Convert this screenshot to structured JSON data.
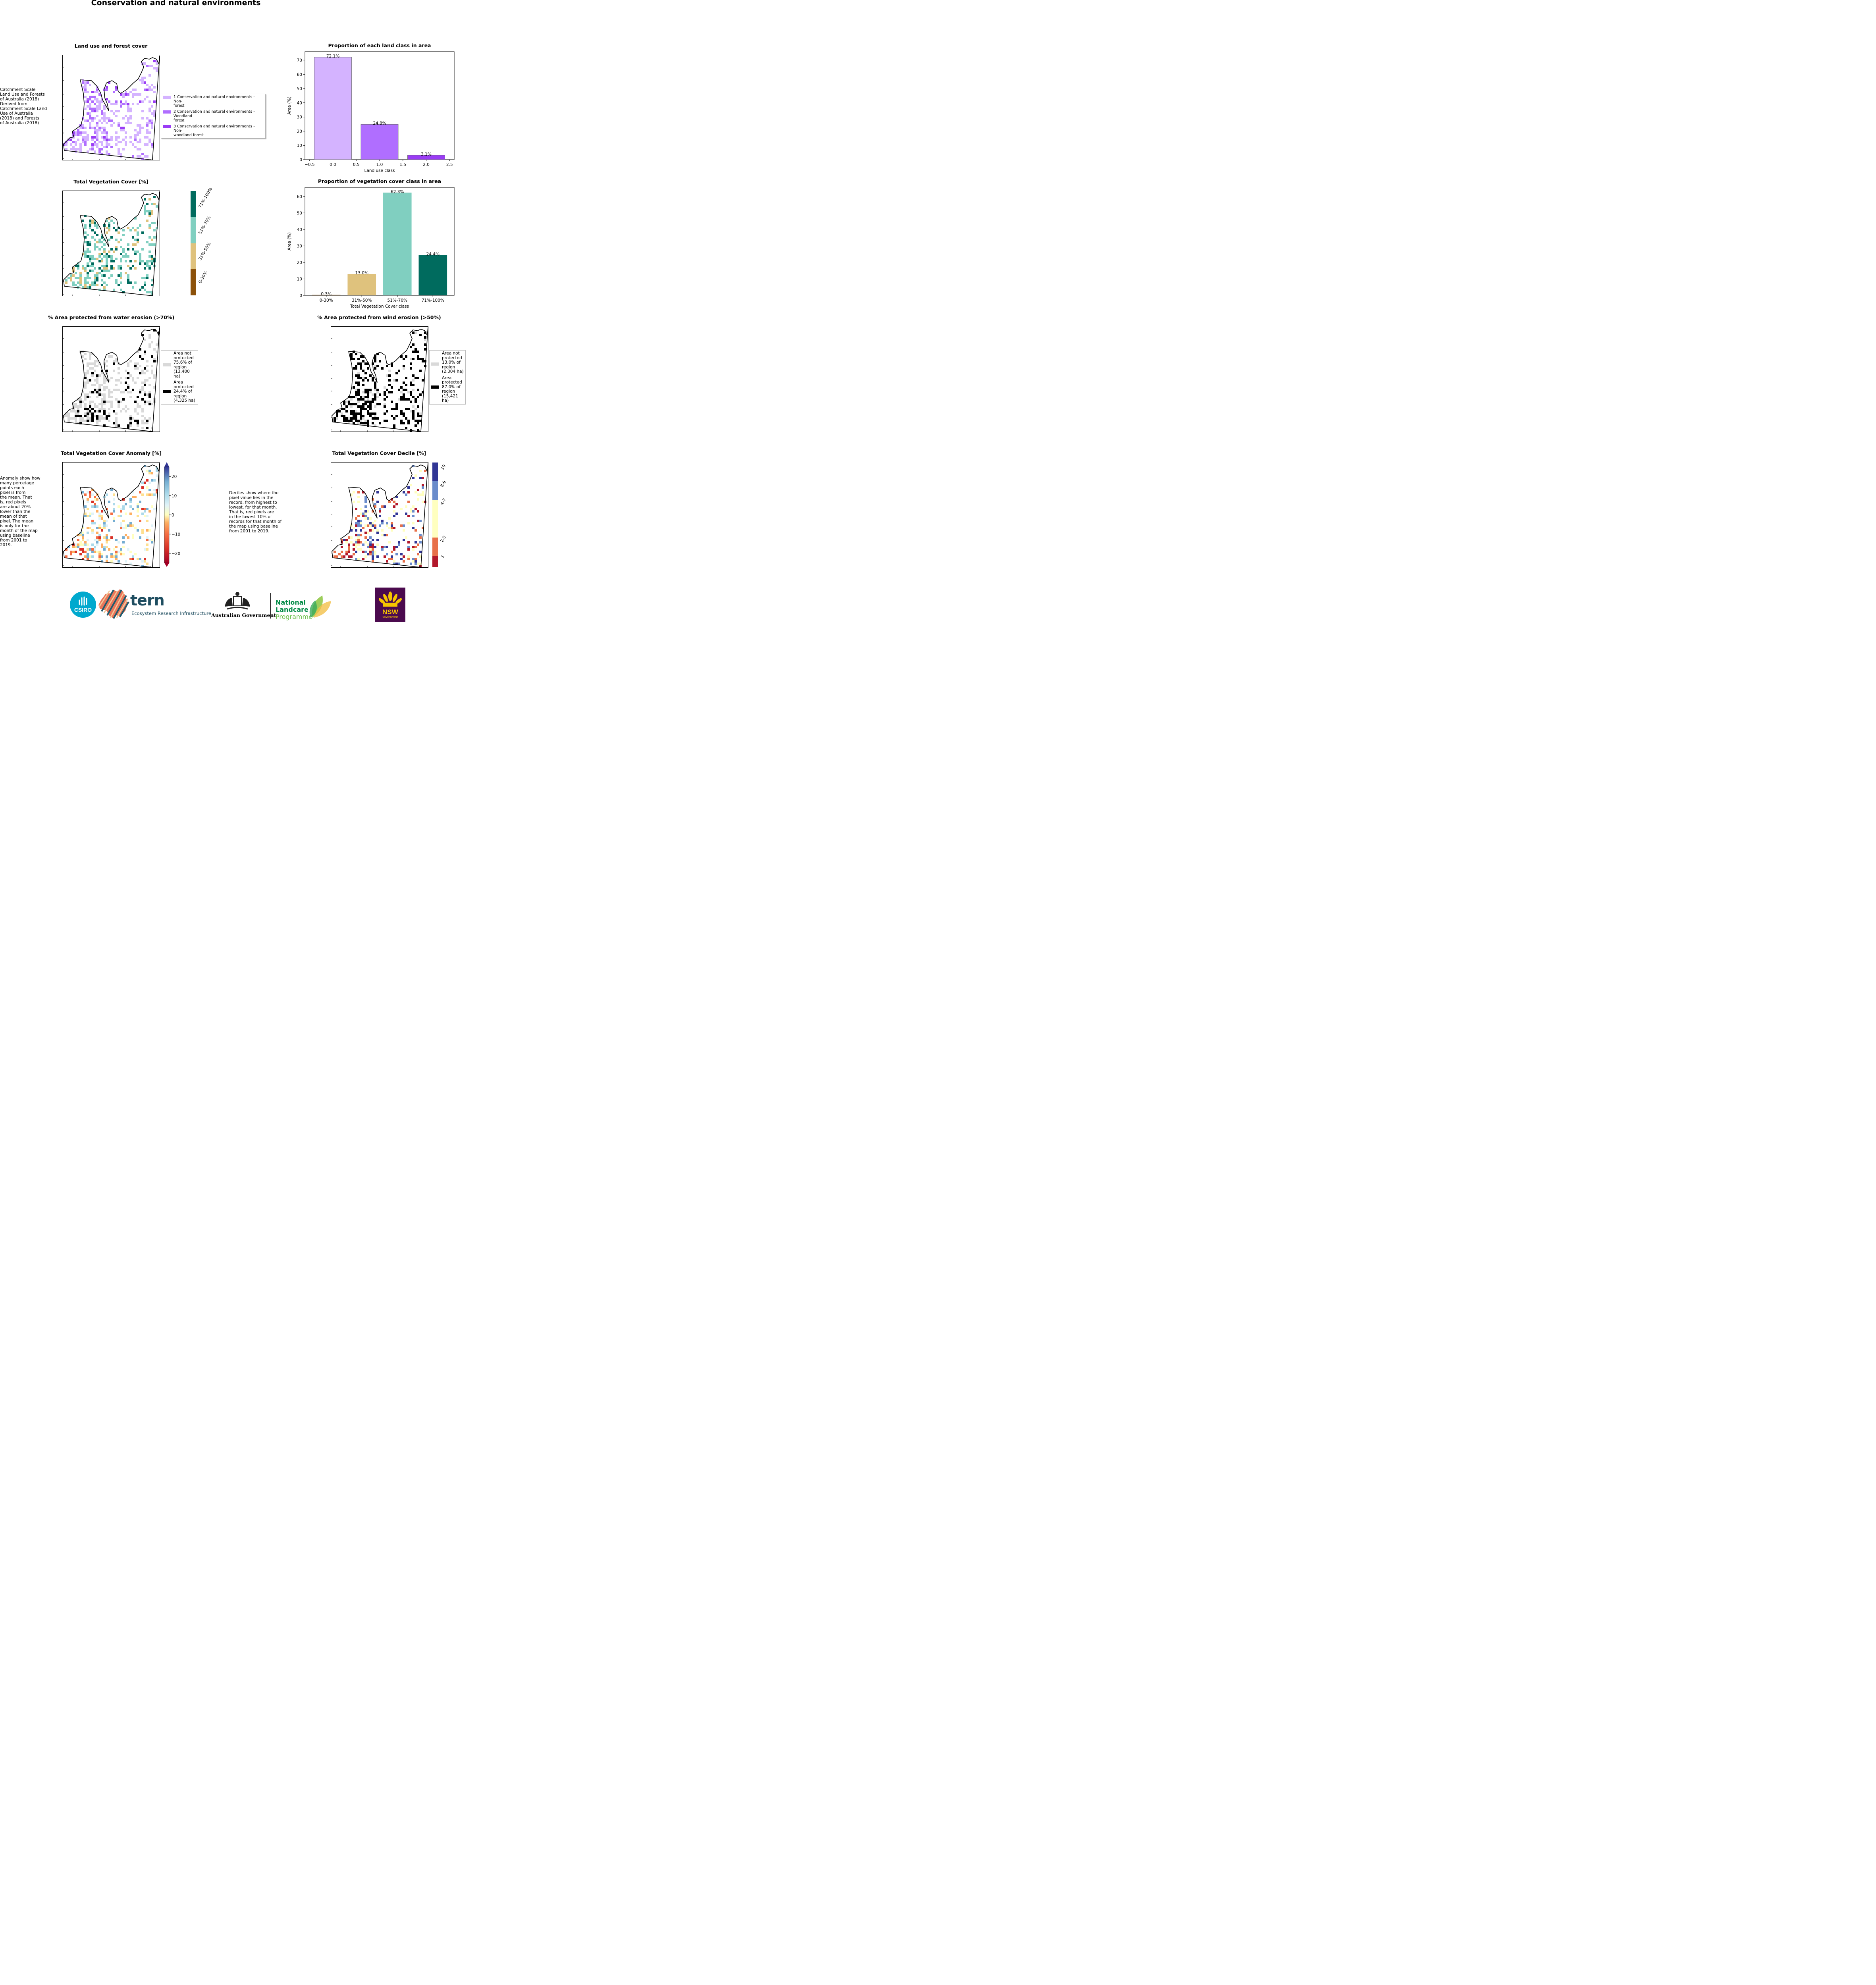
{
  "page_title": "Conservation and natural environments",
  "maps": {
    "landuse": {
      "title": "Land use and forest cover",
      "side_text": " Catchment Scale\nLand Use and Forests\nof Australia (2018)\nDerived from\nCatchment Scale Land\nUse of Australia\n(2018) and Forests\nof Australia (2018)",
      "legend": [
        {
          "label": "1 Conservation and natural environments - Non-\nforest",
          "color": "#d4b3ff"
        },
        {
          "label": "2 Conservation and natural environments - Woodland\nforest",
          "color": "#b06eff"
        },
        {
          "label": "3 Conservation and natural environments - Non-\nwoodland forest",
          "color": "#9a3cf5"
        }
      ]
    },
    "vegcover": {
      "title": "Total Vegetation Cover [%]",
      "colorbar": [
        {
          "label": "71%-100%",
          "color": "#006b5e"
        },
        {
          "label": "51%-70%",
          "color": "#80cfc0"
        },
        {
          "label": "31%-50%",
          "color": "#dfc27d"
        },
        {
          "label": "0-30%",
          "color": "#8c510a"
        }
      ]
    },
    "water": {
      "title": "% Area protected from water erosion (>70%)",
      "legend": [
        {
          "label": "Area not\nprotected\n75.6% of\nregion\n(13,400\nha)",
          "color": "#d9d9d9"
        },
        {
          "label": "Area\nprotected\n24.4% of\nregion\n(4,325 ha)",
          "color": "#000000"
        }
      ]
    },
    "wind": {
      "title": "% Area protected from wind erosion (>50%)",
      "legend": [
        {
          "label": "Area not\nprotected\n13.0% of\nregion\n(2,304 ha)",
          "color": "#d9d9d9"
        },
        {
          "label": "Area\nprotected\n87.0% of\nregion\n(15,421\nha)",
          "color": "#000000"
        }
      ]
    },
    "anomaly": {
      "title": "Total Vegetation Cover Anomaly [%]",
      "side_text": "Anomaly show how\nmany percetage\npoints each\npixel is from\nthe mean. That\nis, red pixels\nare about 20%\nlower than the\nmean of that\npixel. The mean\nis only for the\nmonth of the map\nusing baseline\nfrom 2001 to\n2019.",
      "colorbar_ticks": [
        "20",
        "10",
        "0",
        "−10",
        "−20"
      ]
    },
    "decile": {
      "title": "Total Vegetation Cover Decile [%]",
      "side_text": "Deciles show where the\npixel value lies in the\nrecord, from highest to\nlowest, for that month.\nThat is, red pixels are\nin the lowest 10% of\nrecords for that month of\nthe map using baseline\nfrom 2001 to 2019.",
      "colorbar": [
        {
          "label": "10",
          "color": "#313695"
        },
        {
          "label": "8-9",
          "color": "#6a8ccb"
        },
        {
          "label": "4-7",
          "color": "#ffffc0"
        },
        {
          "label": "2-3",
          "color": "#e8704a"
        },
        {
          "label": "1",
          "color": "#b2182b"
        }
      ]
    }
  },
  "chart_data": [
    {
      "type": "bar",
      "title": "Proportion of each land class in area",
      "xlabel": "Land use class",
      "ylabel": "Area (%)",
      "x": [
        0,
        1,
        2
      ],
      "values": [
        72.1,
        24.8,
        3.1
      ],
      "data_labels": [
        "72.1%",
        "24.8%",
        "3.1%"
      ],
      "colors": [
        "#d4b3ff",
        "#b06eff",
        "#9a3cf5"
      ],
      "xlim": [
        -0.6,
        2.6
      ],
      "ylim": [
        0,
        76
      ],
      "xticks": [
        "−0.5",
        "0.0",
        "0.5",
        "1.0",
        "1.5",
        "2.0",
        "2.5"
      ],
      "xtick_values": [
        -0.5,
        0,
        0.5,
        1,
        1.5,
        2,
        2.5
      ],
      "yticks": [
        "0",
        "10",
        "20",
        "30",
        "40",
        "50",
        "60",
        "70"
      ],
      "ytick_values": [
        0,
        10,
        20,
        30,
        40,
        50,
        60,
        70
      ],
      "grid": false
    },
    {
      "type": "bar",
      "title": "Proportion of vegetation cover class in area",
      "xlabel": "Total Vegetation Cover class",
      "ylabel": "Area (%)",
      "categories": [
        "0-30%",
        "31%-50%",
        "51%-70%",
        "71%-100%"
      ],
      "values": [
        0.3,
        13.0,
        62.3,
        24.4
      ],
      "data_labels": [
        "0.3%",
        "13.0%",
        "62.3%",
        "24.4%"
      ],
      "colors": [
        "#8c510a",
        "#dfc27d",
        "#80cfc0",
        "#006b5e"
      ],
      "ylim": [
        0,
        65.5
      ],
      "yticks": [
        "0",
        "10",
        "20",
        "30",
        "40",
        "50",
        "60"
      ],
      "ytick_values": [
        0,
        10,
        20,
        30,
        40,
        50,
        60
      ],
      "grid": false
    }
  ],
  "logos": {
    "csiro": "CSIRO",
    "tern": "tern",
    "tern_sub": "Ecosystem Research Infrastructure",
    "gov": "Australian Government",
    "landcare_1": "National",
    "landcare_2": "Landcare",
    "landcare_3": "Programme",
    "nsw": "NSW",
    "nsw_sub": "GOVERNMENT"
  }
}
